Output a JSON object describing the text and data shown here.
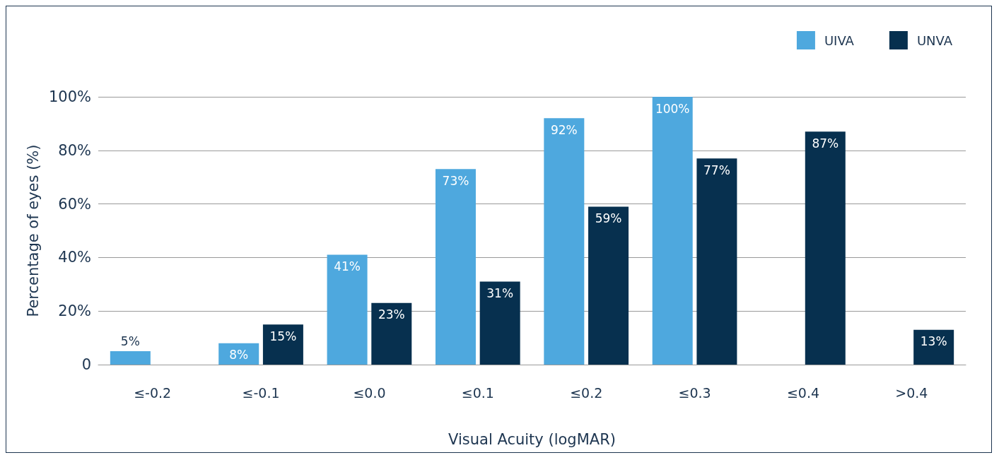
{
  "chart_data": {
    "type": "bar",
    "xlabel": "Visual Acuity (logMAR)",
    "ylabel": "Percentage of eyes (%)",
    "categories": [
      "≤-0.2",
      "≤-0.1",
      "≤0.0",
      "≤0.1",
      "≤0.2",
      "≤0.3",
      "≤0.4",
      ">0.4"
    ],
    "series": [
      {
        "name": "UIVA",
        "color": "#4ea8de",
        "values": [
          5,
          8,
          41,
          73,
          92,
          100,
          null,
          null
        ],
        "value_labels": [
          "5%",
          "8%",
          "41%",
          "73%",
          "92%",
          "100%",
          null,
          null
        ]
      },
      {
        "name": "UNVA",
        "color": "#07304f",
        "values": [
          null,
          15,
          23,
          31,
          59,
          77,
          87,
          13
        ],
        "value_labels": [
          null,
          "15%",
          "23%",
          "31%",
          "59%",
          "77%",
          "87%",
          "13%"
        ]
      }
    ],
    "ylim": [
      0,
      100
    ],
    "yticks": [
      0,
      {
        "value": 20,
        "label": "20%"
      },
      {
        "value": 40,
        "label": "40%"
      },
      {
        "value": 60,
        "label": "60%"
      },
      {
        "value": 80,
        "label": "80%"
      },
      {
        "value": 100,
        "label": "100%"
      }
    ],
    "grid": "y",
    "legend": "top right"
  }
}
